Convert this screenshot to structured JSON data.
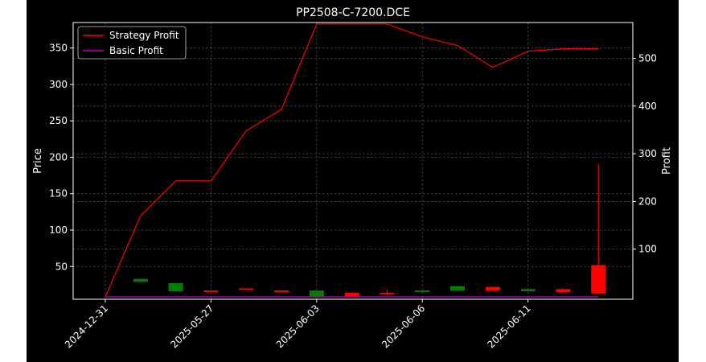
{
  "chart_data": {
    "type": "candlestick",
    "title": "PP2508-C-7200.DCE",
    "ylabel_left": "Price",
    "ylabel_right": "Profit",
    "left_ticks": [
      50,
      100,
      150,
      200,
      250,
      300,
      350
    ],
    "left_ylim": [
      5,
      385
    ],
    "right_ticks": [
      100,
      200,
      300,
      400,
      500
    ],
    "right_ylim": [
      -5,
      575
    ],
    "x_tick_labels": [
      "2024-12-31",
      "2025-05-27",
      "2025-06-03",
      "2025-06-06",
      "2025-06-11"
    ],
    "x_tick_indices": [
      0,
      3,
      6,
      9,
      12
    ],
    "grid": true,
    "legend_position": "top-left",
    "candles": [
      {
        "i": 1,
        "open": 33,
        "close": 29,
        "high": 33,
        "low": 29,
        "color": "#008000"
      },
      {
        "i": 2,
        "open": 27,
        "close": 16,
        "high": 27,
        "low": 15,
        "color": "#008000"
      },
      {
        "i": 3,
        "open": 16,
        "close": 17,
        "high": 17,
        "low": 16,
        "color": "#ff0000"
      },
      {
        "i": 4,
        "open": 19,
        "close": 20,
        "high": 20,
        "low": 19,
        "color": "#ff0000"
      },
      {
        "i": 5,
        "open": 16,
        "close": 17,
        "high": 17,
        "low": 16,
        "color": "#ff0000"
      },
      {
        "i": 6,
        "open": 17,
        "close": 9,
        "high": 17,
        "low": 9,
        "color": "#008000"
      },
      {
        "i": 7,
        "open": 9,
        "close": 14,
        "high": 14,
        "low": 9,
        "color": "#ff0000"
      },
      {
        "i": 8,
        "open": 12,
        "close": 14,
        "high": 19,
        "low": 10,
        "color": "#ff0000"
      },
      {
        "i": 9,
        "open": 17,
        "close": 15,
        "high": 17,
        "low": 15,
        "color": "#008000"
      },
      {
        "i": 10,
        "open": 23,
        "close": 17,
        "high": 23,
        "low": 17,
        "color": "#008000"
      },
      {
        "i": 11,
        "open": 17,
        "close": 22,
        "high": 22,
        "low": 17,
        "color": "#ff0000"
      },
      {
        "i": 12,
        "open": 19,
        "close": 16,
        "high": 19,
        "low": 16,
        "color": "#008000"
      },
      {
        "i": 13,
        "open": 15,
        "close": 19,
        "high": 20,
        "low": 15,
        "color": "#ff0000"
      },
      {
        "i": 14,
        "open": 13,
        "close": 52,
        "high": 191,
        "low": 13,
        "color": "#ff0000"
      }
    ],
    "series": [
      {
        "name": "Strategy Profit",
        "color": "#ff0000",
        "axis": "right",
        "x": [
          0,
          1,
          2,
          3,
          4,
          5,
          6,
          7,
          8,
          9,
          10,
          11,
          12,
          13,
          14
        ],
        "values": [
          0,
          170,
          243,
          243,
          348,
          393,
          572,
          572,
          572,
          545,
          527,
          481,
          515,
          520,
          520
        ]
      },
      {
        "name": "Basic Profit",
        "color": "#bf00bf",
        "axis": "right",
        "x": [
          0,
          14
        ],
        "values": [
          0,
          0
        ]
      }
    ]
  }
}
